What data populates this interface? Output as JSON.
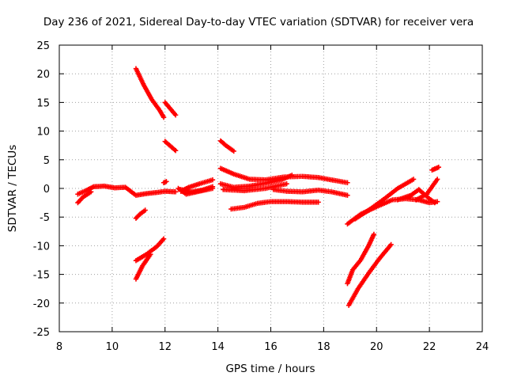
{
  "chart_data": {
    "type": "scatter",
    "title": "Day 236 of 2021, Sidereal Day-to-day VTEC variation (SDTVAR) for receiver vera",
    "xlabel": "GPS time / hours",
    "ylabel": "SDTVAR / TECUs",
    "xlim": [
      8,
      24
    ],
    "ylim": [
      -25,
      25
    ],
    "xticks": [
      "8",
      "10",
      "12",
      "14",
      "16",
      "18",
      "20",
      "22",
      "24"
    ],
    "yticks": [
      "25",
      "20",
      "15",
      "10",
      "5",
      "0",
      "-5",
      "-10",
      "-15",
      "-20",
      "-25"
    ],
    "grid": true,
    "marker": "plus",
    "color": "#ff0000",
    "series": [
      {
        "x": [
          8.7,
          9.0,
          9.3,
          9.7,
          10.1,
          10.5,
          10.9,
          11.3,
          11.7,
          12.0,
          12.4
        ],
        "y": [
          -1.0,
          -0.4,
          0.3,
          0.4,
          0.1,
          0.2,
          -1.2,
          -0.9,
          -0.7,
          -0.5,
          -0.6
        ]
      },
      {
        "x": [
          8.7,
          8.9,
          9.2
        ],
        "y": [
          -2.5,
          -1.5,
          -0.6
        ]
      },
      {
        "x": [
          10.9,
          11.2,
          11.5,
          11.8,
          11.95
        ],
        "y": [
          20.9,
          18.0,
          15.5,
          13.6,
          12.4
        ]
      },
      {
        "x": [
          12.0,
          12.2,
          12.4
        ],
        "y": [
          15.0,
          13.9,
          12.8
        ]
      },
      {
        "x": [
          12.0,
          12.2,
          12.4
        ],
        "y": [
          8.2,
          7.4,
          6.6
        ]
      },
      {
        "x": [
          11.95,
          12.05
        ],
        "y": [
          1.0,
          1.2
        ]
      },
      {
        "x": [
          10.9,
          11.05,
          11.25
        ],
        "y": [
          -5.2,
          -4.5,
          -3.8
        ]
      },
      {
        "x": [
          10.9,
          11.3,
          11.7,
          11.95
        ],
        "y": [
          -12.6,
          -11.5,
          -10.1,
          -8.8
        ]
      },
      {
        "x": [
          10.9,
          11.15,
          11.45
        ],
        "y": [
          -15.8,
          -13.5,
          -11.5
        ]
      },
      {
        "x": [
          12.6,
          12.9,
          13.3,
          13.8
        ],
        "y": [
          -0.5,
          0.2,
          0.8,
          1.5
        ]
      },
      {
        "x": [
          12.6,
          13.0,
          13.4,
          13.8
        ],
        "y": [
          -0.2,
          -0.6,
          -0.3,
          0.3
        ]
      },
      {
        "x": [
          12.5,
          12.8,
          13.2,
          13.8
        ],
        "y": [
          0.0,
          -1.0,
          -0.6,
          0.0
        ]
      },
      {
        "x": [
          14.1,
          14.3,
          14.6
        ],
        "y": [
          8.3,
          7.5,
          6.5
        ]
      },
      {
        "x": [
          14.1,
          14.6,
          15.2,
          15.8,
          16.5,
          17.2,
          17.8,
          18.4,
          18.9
        ],
        "y": [
          3.5,
          2.5,
          1.6,
          1.5,
          2.0,
          2.1,
          1.9,
          1.4,
          1.0
        ]
      },
      {
        "x": [
          14.1,
          14.6,
          15.2,
          15.8,
          16.4,
          16.8
        ],
        "y": [
          0.8,
          0.2,
          0.4,
          0.9,
          1.5,
          2.3
        ]
      },
      {
        "x": [
          14.2,
          15.0,
          15.8,
          16.6
        ],
        "y": [
          -0.2,
          -0.4,
          0.0,
          0.8
        ]
      },
      {
        "x": [
          16.1,
          16.6,
          17.2,
          17.8,
          18.3,
          18.9
        ],
        "y": [
          -0.2,
          -0.5,
          -0.6,
          -0.3,
          -0.6,
          -1.2
        ]
      },
      {
        "x": [
          14.5,
          15.0,
          15.5,
          16.0,
          16.6,
          17.2,
          17.8
        ],
        "y": [
          -3.6,
          -3.3,
          -2.6,
          -2.3,
          -2.3,
          -2.4,
          -2.4
        ]
      },
      {
        "x": [
          18.9,
          19.4,
          20.0,
          20.6,
          21.1,
          21.6,
          22.0,
          22.3
        ],
        "y": [
          -6.2,
          -4.5,
          -3.2,
          -2.0,
          -1.8,
          -2.0,
          -2.5,
          -2.3
        ]
      },
      {
        "x": [
          19.2,
          19.7,
          20.3,
          20.8,
          21.4
        ],
        "y": [
          -5.3,
          -3.8,
          -1.8,
          0.0,
          1.6
        ]
      },
      {
        "x": [
          20.8,
          21.3,
          21.6,
          21.8,
          22.0,
          22.2
        ],
        "y": [
          -2.0,
          -1.2,
          -0.2,
          -1.0,
          -1.8,
          -2.5
        ]
      },
      {
        "x": [
          21.5,
          21.9,
          22.3
        ],
        "y": [
          -2.0,
          -1.0,
          1.6
        ]
      },
      {
        "x": [
          22.1,
          22.35
        ],
        "y": [
          3.2,
          3.7
        ]
      },
      {
        "x": [
          18.9,
          19.1,
          19.4,
          19.7,
          19.9
        ],
        "y": [
          -16.6,
          -14.2,
          -12.5,
          -10.0,
          -8.0
        ]
      },
      {
        "x": [
          18.95,
          19.3,
          19.7,
          20.1,
          20.55
        ],
        "y": [
          -20.4,
          -17.5,
          -14.8,
          -12.3,
          -9.8
        ]
      }
    ]
  }
}
